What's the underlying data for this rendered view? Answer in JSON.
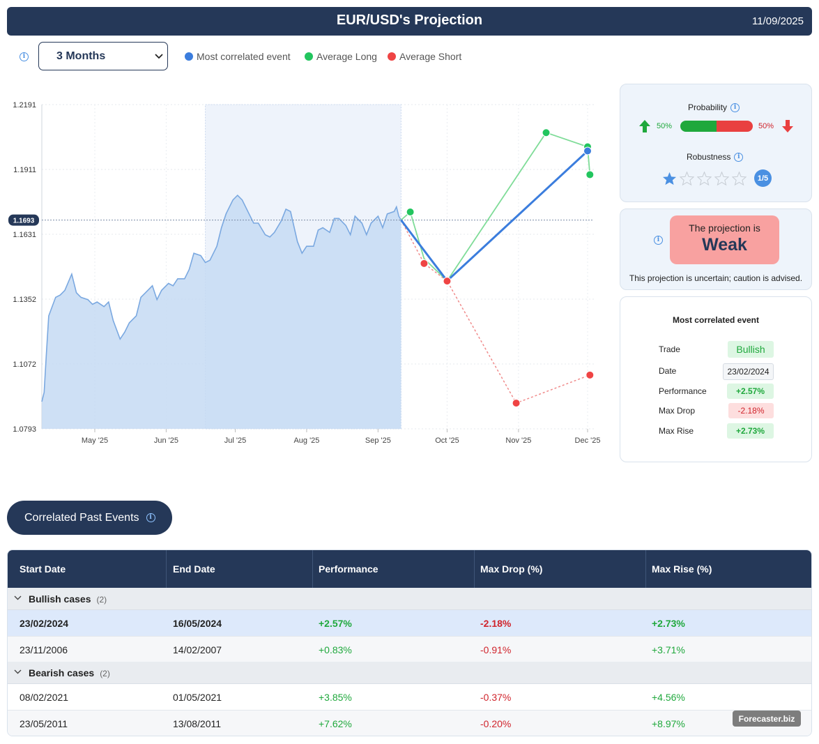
{
  "header": {
    "title": "EUR/USD's Projection",
    "date": "11/09/2025"
  },
  "controls": {
    "period_selected": "3 Months",
    "legend": [
      {
        "label": "Most correlated event",
        "color": "#3b7ddd"
      },
      {
        "label": "Average Long",
        "color": "#22c55e"
      },
      {
        "label": "Average Short",
        "color": "#ef4444"
      }
    ]
  },
  "chart_data": {
    "type": "line",
    "y_ticks": [
      "1.2191",
      "1.1911",
      "1.1631",
      "1.1352",
      "1.1072",
      "1.0793"
    ],
    "x_ticks": [
      "May '25",
      "Jun '25",
      "Jul '25",
      "Aug '25",
      "Sep '25",
      "Oct '25",
      "Nov '25",
      "Dec '25"
    ],
    "current_value_label": "1.1693",
    "ylim": [
      1.0793,
      1.2191
    ],
    "history_series": {
      "name": "",
      "color": "#7aa8e0",
      "x": [
        "2025-04-08",
        "2025-04-09",
        "2025-04-10",
        "2025-04-11",
        "2025-04-14",
        "2025-04-16",
        "2025-04-18",
        "2025-04-21",
        "2025-04-23",
        "2025-04-25",
        "2025-04-28",
        "2025-04-30",
        "2025-05-02",
        "2025-05-05",
        "2025-05-07",
        "2025-05-09",
        "2025-05-12",
        "2025-05-14",
        "2025-05-16",
        "2025-05-19",
        "2025-05-21",
        "2025-05-23",
        "2025-05-26",
        "2025-05-28",
        "2025-05-30",
        "2025-06-02",
        "2025-06-04",
        "2025-06-06",
        "2025-06-09",
        "2025-06-11",
        "2025-06-13",
        "2025-06-16",
        "2025-06-18",
        "2025-06-20",
        "2025-06-23",
        "2025-06-25",
        "2025-06-27",
        "2025-06-30",
        "2025-07-02",
        "2025-07-04",
        "2025-07-07",
        "2025-07-09",
        "2025-07-11",
        "2025-07-14",
        "2025-07-16",
        "2025-07-18",
        "2025-07-21",
        "2025-07-23",
        "2025-07-25",
        "2025-07-28",
        "2025-07-30",
        "2025-08-01",
        "2025-08-04",
        "2025-08-06",
        "2025-08-08",
        "2025-08-11",
        "2025-08-13",
        "2025-08-15",
        "2025-08-18",
        "2025-08-20",
        "2025-08-22",
        "2025-08-25",
        "2025-08-27",
        "2025-08-29",
        "2025-09-01",
        "2025-09-03",
        "2025-09-05",
        "2025-09-08",
        "2025-09-09",
        "2025-09-10",
        "2025-09-11"
      ],
      "y": [
        1.091,
        1.095,
        1.112,
        1.128,
        1.136,
        1.137,
        1.139,
        1.146,
        1.138,
        1.136,
        1.135,
        1.133,
        1.134,
        1.132,
        1.134,
        1.126,
        1.118,
        1.121,
        1.125,
        1.128,
        1.136,
        1.138,
        1.141,
        1.135,
        1.139,
        1.142,
        1.141,
        1.144,
        1.144,
        1.148,
        1.155,
        1.154,
        1.151,
        1.152,
        1.158,
        1.166,
        1.172,
        1.178,
        1.18,
        1.178,
        1.172,
        1.168,
        1.168,
        1.163,
        1.162,
        1.164,
        1.169,
        1.174,
        1.173,
        1.16,
        1.155,
        1.158,
        1.158,
        1.165,
        1.166,
        1.164,
        1.17,
        1.17,
        1.167,
        1.163,
        1.171,
        1.168,
        1.163,
        1.168,
        1.171,
        1.166,
        1.172,
        1.173,
        1.175,
        1.171,
        1.1693
      ]
    },
    "projection_series": [
      {
        "name": "Most correlated event",
        "color": "#3b7ddd",
        "x": [
          "2025-09-11",
          "2025-10-01",
          "2025-12-01"
        ],
        "y": [
          1.1693,
          1.1431,
          1.1991
        ]
      },
      {
        "name": "Average Long",
        "color": "#22c55e",
        "x": [
          "2025-09-11",
          "2025-09-15",
          "2025-09-21",
          "2025-10-01",
          "2025-11-13",
          "2025-12-01",
          "2025-12-02"
        ],
        "y": [
          1.1693,
          1.1728,
          1.1527,
          1.1431,
          1.207,
          1.2009,
          1.1889
        ]
      },
      {
        "name": "Average Short",
        "color": "#ef4444",
        "x": [
          "2025-09-11",
          "2025-09-21",
          "2025-10-01",
          "2025-10-31",
          "2025-12-02"
        ],
        "y": [
          1.1693,
          1.1506,
          1.143,
          1.0904,
          1.1025
        ]
      }
    ]
  },
  "probability": {
    "title": "Probability",
    "up_pct": "50%",
    "down_pct": "50%",
    "up_fraction": 0.5
  },
  "robustness": {
    "title": "Robustness",
    "stars_filled": 1,
    "stars_total": 5,
    "badge": "1/5"
  },
  "projection_strength": {
    "line1": "The projection is",
    "line2": "Weak",
    "note": "This projection is uncertain; caution is advised."
  },
  "event": {
    "title": "Most correlated event",
    "rows": [
      {
        "label": "Trade",
        "value": "Bullish"
      },
      {
        "label": "Date",
        "value": "23/02/2024"
      },
      {
        "label": "Performance",
        "value": "+2.57%"
      },
      {
        "label": "Max Drop",
        "value": "-2.18%"
      },
      {
        "label": "Max Rise",
        "value": "+2.73%"
      }
    ]
  },
  "correlated_button": "Correlated Past Events",
  "table": {
    "headers": [
      "Start Date",
      "End Date",
      "Performance",
      "Max Drop (%)",
      "Max Rise (%)"
    ],
    "groups": [
      {
        "label": "Bullish cases",
        "count": "(2)",
        "rows": [
          [
            "23/02/2024",
            "16/05/2024",
            "+2.57%",
            "-2.18%",
            "+2.73%"
          ],
          [
            "23/11/2006",
            "14/02/2007",
            "+0.83%",
            "-0.91%",
            "+3.71%"
          ]
        ]
      },
      {
        "label": "Bearish cases",
        "count": "(2)",
        "rows": [
          [
            "08/02/2021",
            "01/05/2021",
            "+3.85%",
            "-0.37%",
            "+4.56%"
          ],
          [
            "23/05/2011",
            "13/08/2011",
            "+7.62%",
            "-0.20%",
            "+8.97%"
          ]
        ]
      }
    ]
  },
  "watermark": "Forecaster.biz"
}
